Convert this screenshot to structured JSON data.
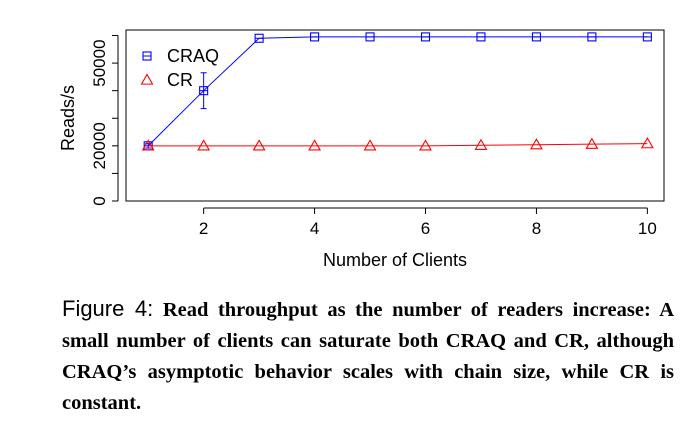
{
  "chart_data": {
    "type": "line",
    "xlabel": "Number of Clients",
    "ylabel": "Reads/s",
    "xlim": [
      0.6,
      10.3
    ],
    "ylim": [
      0,
      62000
    ],
    "x_ticks": [
      "2",
      "4",
      "6",
      "8",
      "10"
    ],
    "y_ticks": [
      "0",
      "20000",
      "50000"
    ],
    "x": [
      1,
      2,
      3,
      4,
      5,
      6,
      7,
      8,
      9,
      10
    ],
    "series": [
      {
        "name": "CRAQ",
        "color": "#0000ff",
        "marker": "square",
        "values": [
          20000,
          40000,
          59000,
          59500,
          59500,
          59500,
          59500,
          59500,
          59500,
          59500
        ],
        "error_low": [
          19200,
          33500,
          null,
          null,
          null,
          null,
          null,
          null,
          null,
          null
        ],
        "error_high": [
          20800,
          46500,
          null,
          null,
          null,
          null,
          null,
          null,
          null,
          null
        ]
      },
      {
        "name": "CR",
        "color": "#ff0000",
        "marker": "triangle",
        "values": [
          20000,
          20000,
          20000,
          20000,
          20000,
          20000,
          20200,
          20400,
          20600,
          20800
        ]
      }
    ],
    "grid": false,
    "legend_placement": "top-left"
  },
  "caption": {
    "label": "Figure 4:",
    "text": "Read throughput as the number of readers increase: A small number of clients can saturate both CRAQ and CR, although CRAQ’s asymptotic behavior scales with chain size, while CR is constant."
  }
}
